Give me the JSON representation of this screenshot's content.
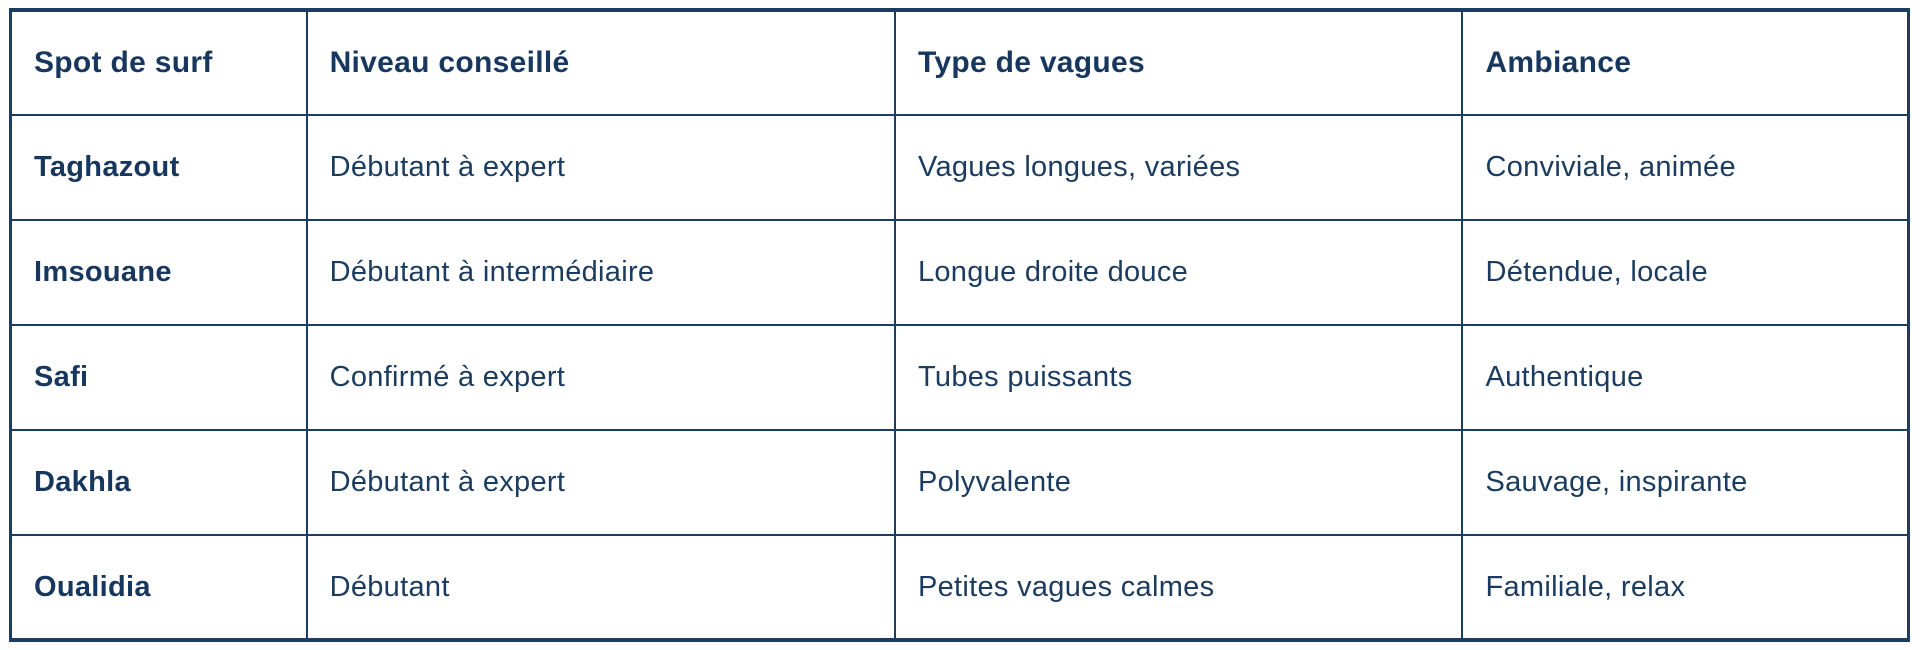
{
  "table": {
    "title_semantic": "surf-spots-comparison-table",
    "columns": [
      "Spot de surf",
      "Niveau conseillé",
      "Type de vagues",
      "Ambiance"
    ],
    "rows": [
      {
        "spot": "Taghazout",
        "niveau": "Débutant à expert",
        "vagues": "Vagues longues, variées",
        "ambiance": "Conviviale, animée"
      },
      {
        "spot": "Imsouane",
        "niveau": "Débutant à intermédiaire",
        "vagues": "Longue droite douce",
        "ambiance": "Détendue, locale"
      },
      {
        "spot": "Safi",
        "niveau": "Confirmé à expert",
        "vagues": "Tubes puissants",
        "ambiance": "Authentique"
      },
      {
        "spot": "Dakhla",
        "niveau": "Débutant à expert",
        "vagues": "Polyvalente",
        "ambiance": "Sauvage, inspirante"
      },
      {
        "spot": "Oualidia",
        "niveau": "Débutant",
        "vagues": "Petites vagues calmes",
        "ambiance": "Familiale, relax"
      }
    ],
    "colors": {
      "text": "#1b3b5f",
      "heading_text": "#17375e",
      "border": "#1c3c61",
      "background": "#ffffff"
    }
  }
}
